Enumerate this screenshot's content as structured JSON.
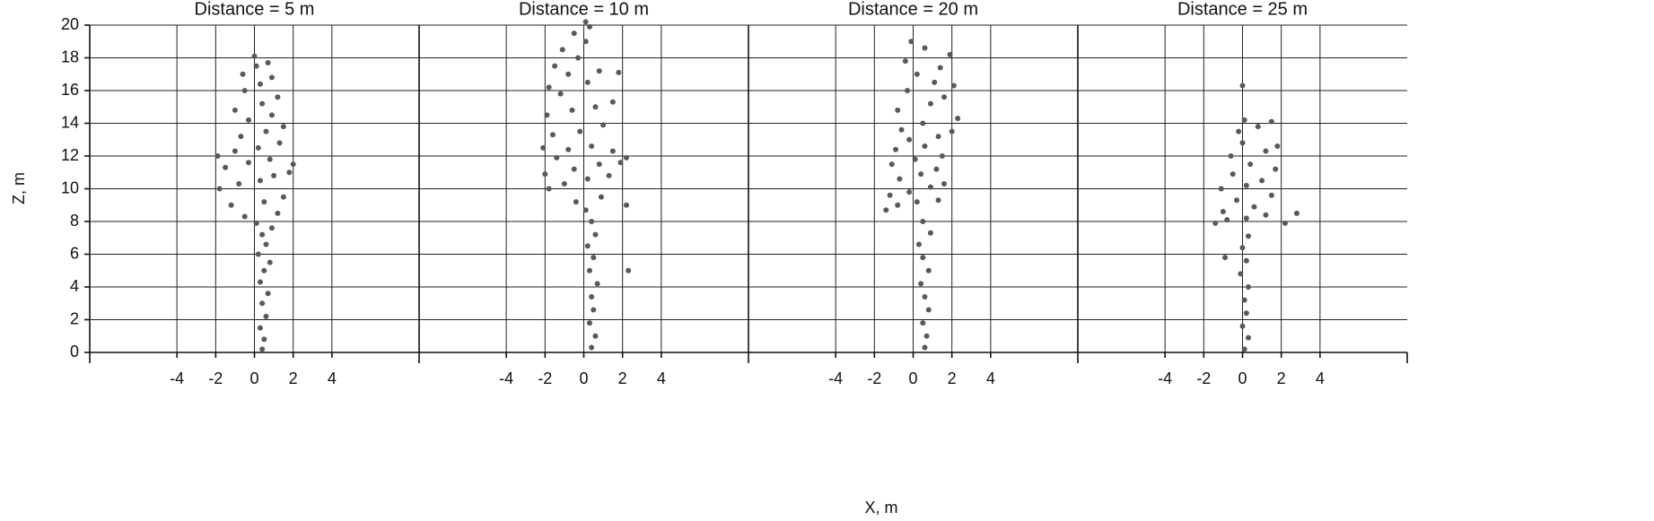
{
  "axis_labels": {
    "x": "X, m",
    "y": "Z, m"
  },
  "chart_data": [
    {
      "type": "scatter",
      "title": "Distance = 5 m",
      "color": "#595959",
      "xlim": [
        -8.5,
        8.5
      ],
      "ylim": [
        0,
        20
      ],
      "xticks": [
        -4,
        -2,
        0,
        2,
        4
      ],
      "yticks": [
        0,
        2,
        4,
        6,
        8,
        10,
        12,
        14,
        16,
        18,
        20
      ],
      "grid": true,
      "x": [
        0.4,
        0.5,
        0.3,
        0.6,
        0.4,
        0.7,
        0.3,
        0.5,
        0.8,
        0.2,
        0.6,
        0.4,
        0.9,
        0.1,
        -0.5,
        1.2,
        -1.2,
        0.5,
        1.5,
        -1.8,
        -0.8,
        0.3,
        1.0,
        1.8,
        -1.5,
        -0.3,
        0.8,
        2.0,
        -1.9,
        -1,
        0.2,
        1.3,
        -0.7,
        0.6,
        1.5,
        -0.3,
        0.9,
        -1,
        0.4,
        1.2,
        -0.5,
        0.3,
        0.9,
        -0.6,
        0.1,
        0.7,
        0
      ],
      "y": [
        0.2,
        0.8,
        1.5,
        2.2,
        3,
        3.6,
        4.3,
        5,
        5.5,
        6,
        6.6,
        7.2,
        7.6,
        7.9,
        8.3,
        8.5,
        9,
        9.2,
        9.5,
        10,
        10.3,
        10.5,
        10.8,
        11,
        11.3,
        11.6,
        11.8,
        11.5,
        12,
        12.3,
        12.5,
        12.8,
        13.2,
        13.5,
        13.8,
        14.2,
        14.5,
        14.8,
        15.2,
        15.6,
        16,
        16.4,
        16.8,
        17,
        17.5,
        17.7,
        18.1
      ]
    },
    {
      "type": "scatter",
      "title": "Distance = 10 m",
      "color": "#595959",
      "xlim": [
        -8.5,
        8.5
      ],
      "ylim": [
        0,
        20
      ],
      "xticks": [
        -4,
        -2,
        0,
        2,
        4
      ],
      "yticks": [
        0,
        2,
        4,
        6,
        8,
        10,
        12,
        14,
        16,
        18,
        20
      ],
      "grid": true,
      "x": [
        0.4,
        0.6,
        0.3,
        0.5,
        0.4,
        0.7,
        0.3,
        0.5,
        0.2,
        0.6,
        0.4,
        0.1,
        -0.4,
        0.9,
        -1.8,
        -1,
        0.2,
        1.3,
        -2,
        -0.5,
        0.8,
        1.9,
        -1.4,
        2.2,
        -2.1,
        -0.8,
        0.4,
        1.5,
        -1.6,
        -0.2,
        1,
        -1.9,
        -0.6,
        0.6,
        1.5,
        -1.2,
        -1.8,
        0.2,
        -0.8,
        0.8,
        -1.5,
        -0.3,
        -1.1,
        0.1,
        -0.5,
        0.3,
        0.1,
        2.3,
        2.2,
        1.8
      ],
      "y": [
        0.3,
        1,
        1.8,
        2.6,
        3.4,
        4.2,
        5,
        5.8,
        6.5,
        7.2,
        8,
        8.7,
        9.2,
        9.5,
        10,
        10.3,
        10.6,
        10.8,
        10.9,
        11.2,
        11.5,
        11.6,
        11.9,
        11.9,
        12.5,
        12.4,
        12.6,
        12.3,
        13.3,
        13.5,
        13.9,
        14.5,
        14.8,
        15,
        15.3,
        15.8,
        16.2,
        16.5,
        17,
        17.2,
        17.5,
        18,
        18.5,
        19,
        19.5,
        19.9,
        20.2,
        5,
        9,
        17.1
      ]
    },
    {
      "type": "scatter",
      "title": "Distance = 20 m",
      "color": "#595959",
      "xlim": [
        -8.5,
        8.5
      ],
      "ylim": [
        0,
        20
      ],
      "xticks": [
        -4,
        -2,
        0,
        2,
        4
      ],
      "yticks": [
        0,
        2,
        4,
        6,
        8,
        10,
        12,
        14,
        16,
        18,
        20
      ],
      "grid": true,
      "x": [
        0.6,
        0.7,
        0.5,
        0.8,
        0.6,
        0.4,
        0.8,
        0.5,
        0.3,
        0.9,
        0.5,
        -1.4,
        -0.8,
        0.2,
        1.3,
        -1.2,
        -0.2,
        0.9,
        1.6,
        -0.7,
        0.4,
        1.2,
        -1.1,
        0.1,
        1.5,
        -0.9,
        0.6,
        -0.2,
        1.3,
        2.0,
        -0.6,
        0.5,
        2.3,
        -0.8,
        0.9,
        1.6,
        -0.3,
        1.1,
        2.1,
        0.2,
        1.4,
        -0.4,
        1.9,
        0.6,
        -0.1
      ],
      "y": [
        0.3,
        1,
        1.8,
        2.6,
        3.4,
        4.2,
        5,
        5.8,
        6.6,
        7.3,
        8,
        8.7,
        9,
        9.2,
        9.3,
        9.6,
        9.8,
        10.1,
        10.3,
        10.6,
        10.9,
        11.2,
        11.5,
        11.8,
        12,
        12.4,
        12.6,
        13,
        13.2,
        13.5,
        13.6,
        14,
        14.3,
        14.8,
        15.2,
        15.6,
        16,
        16.5,
        16.3,
        17,
        17.4,
        17.8,
        18.2,
        18.6,
        19
      ]
    },
    {
      "type": "scatter",
      "title": "Distance = 25 m",
      "color": "#595959",
      "xlim": [
        -8.5,
        8.5
      ],
      "ylim": [
        0,
        20
      ],
      "xticks": [
        -4,
        -2,
        0,
        2,
        4
      ],
      "yticks": [
        0,
        2,
        4,
        6,
        8,
        10,
        12,
        14,
        16,
        18,
        20
      ],
      "grid": true,
      "x": [
        0.1,
        0.3,
        0.0,
        0.2,
        0.1,
        0.3,
        -0.1,
        0.2,
        0.0,
        -0.9,
        0.3,
        -1.4,
        -0.8,
        0.2,
        1.2,
        2.2,
        2.8,
        -1.0,
        0.6,
        -0.3,
        1.5,
        -1.1,
        0.2,
        1.0,
        -0.5,
        1.7,
        0.4,
        -0.6,
        1.2,
        0.0,
        1.8,
        -0.2,
        0.8,
        1.5,
        0.1,
        0.0
      ],
      "y": [
        0.2,
        0.9,
        1.6,
        2.4,
        3.2,
        4,
        4.8,
        5.6,
        6.4,
        5.8,
        7.1,
        7.9,
        8.1,
        8.2,
        8.4,
        7.9,
        8.5,
        8.6,
        8.9,
        9.3,
        9.6,
        10,
        10.2,
        10.5,
        10.9,
        11.2,
        11.5,
        12,
        12.3,
        12.8,
        12.6,
        13.5,
        13.8,
        14.1,
        14.2,
        16.3
      ]
    }
  ]
}
